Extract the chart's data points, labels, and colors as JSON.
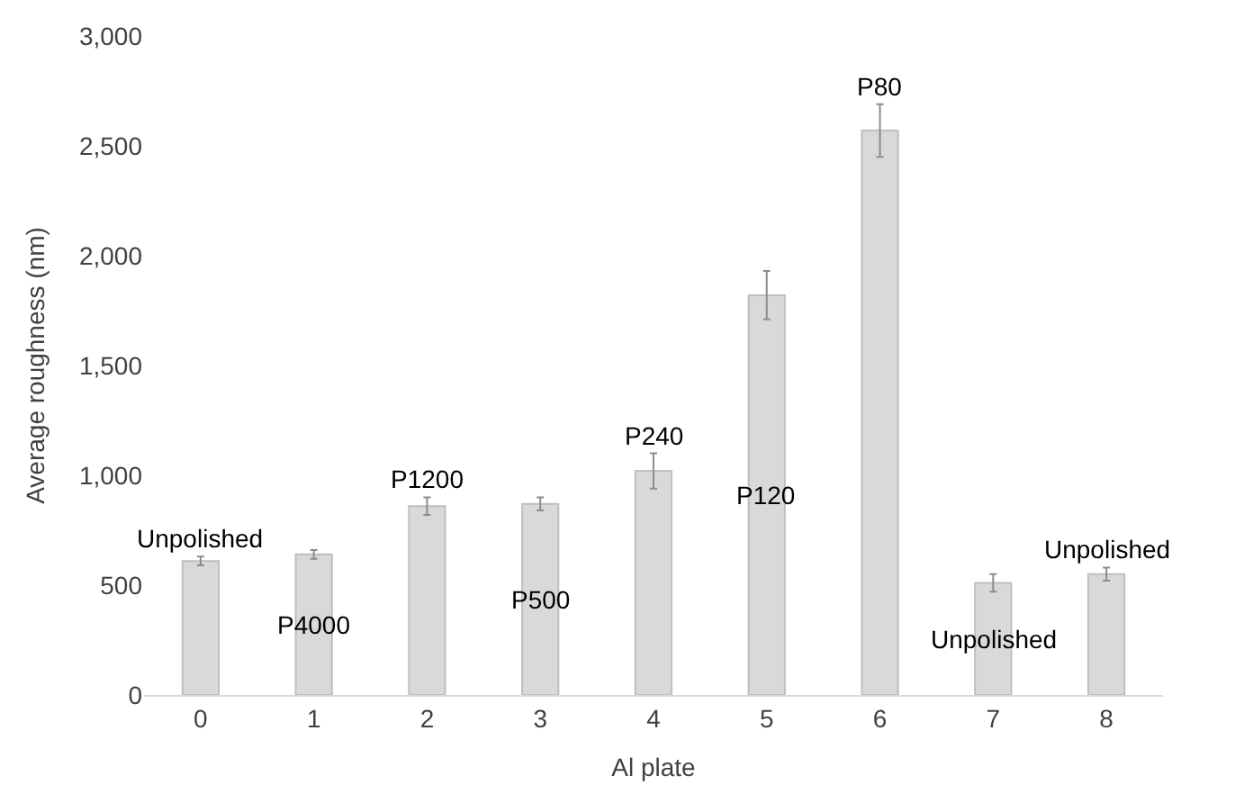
{
  "chart_data": {
    "type": "bar",
    "xlabel": "Al plate",
    "ylabel": "Average roughness (nm)",
    "categories": [
      "0",
      "1",
      "2",
      "3",
      "4",
      "5",
      "6",
      "7",
      "8"
    ],
    "values": [
      610,
      640,
      860,
      870,
      1020,
      1820,
      2570,
      510,
      550
    ],
    "errors": [
      20,
      20,
      40,
      30,
      80,
      110,
      120,
      40,
      30
    ],
    "value_labels": [
      "Unpolished",
      "P4000",
      "P1200",
      "P500",
      "P240",
      "P120",
      "P80",
      "Unpolished",
      "Unpolished"
    ],
    "color": "#d9d9d9",
    "ylim": [
      0,
      3000
    ],
    "yticks": [
      0,
      {
        "value": 500,
        "label": "500"
      },
      {
        "value": 1000,
        "label": "1,000"
      },
      {
        "value": 1500,
        "label": "1,500"
      },
      {
        "value": 2000,
        "label": "2,000"
      },
      {
        "value": 2500,
        "label": "2,500"
      },
      {
        "value": 3000,
        "label": "3,000"
      }
    ],
    "grid": false
  }
}
